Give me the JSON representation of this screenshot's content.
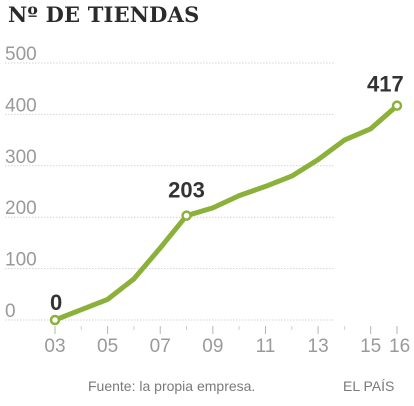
{
  "chart_data": {
    "type": "line",
    "title": "Nº DE TIENDAS",
    "x": [
      2003,
      2004,
      2005,
      2006,
      2007,
      2008,
      2009,
      2010,
      2011,
      2012,
      2013,
      2014,
      2015,
      2016
    ],
    "y": [
      0,
      20,
      40,
      80,
      140,
      203,
      218,
      242,
      260,
      280,
      312,
      350,
      372,
      417
    ],
    "x_tick_labels": [
      "03",
      "05",
      "07",
      "09",
      "11",
      "13",
      "15",
      "16"
    ],
    "x_tick_values": [
      2003,
      2005,
      2007,
      2009,
      2011,
      2013,
      2015,
      2016
    ],
    "y_ticks": [
      0,
      100,
      200,
      300,
      400,
      500
    ],
    "ylim": [
      0,
      500
    ],
    "xlim": [
      2003,
      2016
    ],
    "grid": "horizontal",
    "line_color": "#8cb13a",
    "labeled_points": [
      {
        "x": 2003,
        "label": "0"
      },
      {
        "x": 2008,
        "label": "203"
      },
      {
        "x": 2016,
        "label": "417"
      }
    ]
  },
  "footer": {
    "source": "Fuente: la propia empresa.",
    "credit": "EL PAÍS"
  }
}
